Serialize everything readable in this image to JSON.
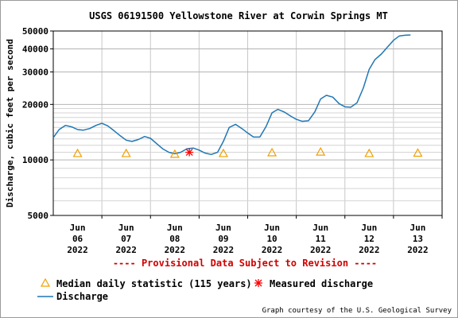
{
  "chart_data": {
    "type": "line",
    "title": "USGS 06191500 Yellowstone River at Corwin Springs MT",
    "ylabel": "Discharge, cubic feet per second",
    "yscale": "log",
    "ylim": [
      5000,
      50000
    ],
    "y_major_ticks": [
      5000,
      10000,
      20000,
      30000,
      40000,
      50000
    ],
    "y_tick_labels": [
      "5000",
      "10000",
      "20000",
      "30000",
      "40000",
      "50000"
    ],
    "y_minor_ticks": [
      6000,
      7000,
      8000,
      9000,
      11000,
      12000,
      13000,
      14000,
      15000,
      16000,
      17000,
      18000,
      19000
    ],
    "xlim": [
      0,
      8
    ],
    "x_tick_labels": [
      [
        "Jun",
        "06",
        "2022"
      ],
      [
        "Jun",
        "07",
        "2022"
      ],
      [
        "Jun",
        "08",
        "2022"
      ],
      [
        "Jun",
        "09",
        "2022"
      ],
      [
        "Jun",
        "10",
        "2022"
      ],
      [
        "Jun",
        "11",
        "2022"
      ],
      [
        "Jun",
        "12",
        "2022"
      ],
      [
        "Jun",
        "13",
        "2022"
      ]
    ],
    "grid": true,
    "provisional_note": "---- Provisional Data Subject to Revision ----",
    "credit": "Graph courtesy of the U.S. Geological Survey",
    "legend_position": "bottom",
    "series": [
      {
        "name": "Discharge",
        "type": "line",
        "color": "#1f77b4",
        "x": [
          0.0,
          0.12,
          0.25,
          0.38,
          0.5,
          0.62,
          0.75,
          0.88,
          1.0,
          1.12,
          1.25,
          1.38,
          1.5,
          1.62,
          1.75,
          1.88,
          2.0,
          2.12,
          2.25,
          2.38,
          2.5,
          2.62,
          2.75,
          2.88,
          3.0,
          3.12,
          3.25,
          3.38,
          3.5,
          3.62,
          3.75,
          3.88,
          4.0,
          4.12,
          4.25,
          4.38,
          4.5,
          4.62,
          4.75,
          4.88,
          5.0,
          5.12,
          5.25,
          5.38,
          5.5,
          5.62,
          5.75,
          5.88,
          6.0,
          6.12,
          6.25,
          6.38,
          6.5,
          6.62,
          6.75,
          6.88,
          7.0,
          7.12,
          7.25,
          7.35
        ],
        "values": [
          13200,
          14600,
          15400,
          15100,
          14600,
          14500,
          14800,
          15400,
          15800,
          15300,
          14400,
          13500,
          12800,
          12600,
          12900,
          13400,
          13100,
          12300,
          11500,
          11000,
          10800,
          11000,
          11500,
          11600,
          11300,
          10900,
          10700,
          11000,
          12600,
          15000,
          15600,
          14800,
          14000,
          13300,
          13300,
          15200,
          18000,
          18800,
          18200,
          17300,
          16600,
          16200,
          16300,
          18200,
          21400,
          22400,
          21900,
          20200,
          19400,
          19300,
          20400,
          24600,
          31000,
          35000,
          37500,
          41000,
          44500,
          47000,
          47500,
          47600
        ]
      },
      {
        "name": "Median daily statistic (115 years)",
        "type": "scatter",
        "marker": "triangle",
        "color": "#f0a000",
        "x": [
          0.5,
          1.5,
          2.5,
          3.5,
          4.5,
          5.5,
          6.5,
          7.5
        ],
        "values": [
          10850,
          10850,
          10750,
          10850,
          10950,
          11050,
          10850,
          10900
        ]
      },
      {
        "name": "Measured discharge",
        "type": "scatter",
        "marker": "asterisk",
        "color": "#ff0000",
        "x": [
          2.8
        ],
        "values": [
          11000
        ]
      }
    ]
  },
  "legend": {
    "median_label": "Median daily statistic (115 years)",
    "measured_label": "Measured discharge",
    "discharge_label": "Discharge"
  }
}
